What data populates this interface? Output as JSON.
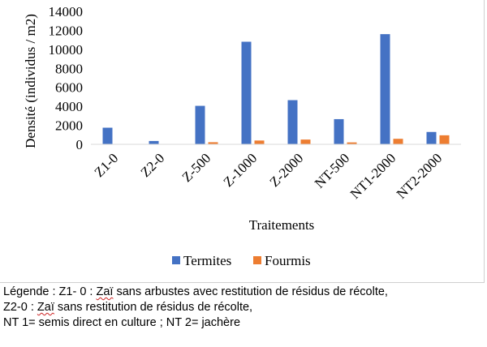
{
  "chart_data": {
    "type": "bar",
    "title": "",
    "xlabel": "Traitements",
    "ylabel": "Densité (individus / m2)",
    "ylim": [
      0,
      14000
    ],
    "yticks": [
      0,
      2000,
      4000,
      6000,
      8000,
      10000,
      12000,
      14000
    ],
    "ytick_labels": [
      "0",
      "2000",
      "4000",
      "6000",
      "8000",
      "10000",
      "12000",
      "14000"
    ],
    "grid": false,
    "legend_position": "bottom",
    "categories": [
      "Z1-0",
      "Z2-0",
      "Z-500",
      "Z-1000",
      "Z-2000",
      "NT-500",
      "NT1-2000",
      "NT2-2000"
    ],
    "series": [
      {
        "name": "Termites",
        "color": "#4472C4",
        "values": [
          1750,
          350,
          4050,
          10800,
          4650,
          2650,
          11600,
          1300
        ]
      },
      {
        "name": "Fourmis",
        "color": "#ED7D31",
        "values": [
          0,
          0,
          220,
          400,
          500,
          200,
          580,
          950
        ]
      }
    ]
  },
  "caption": {
    "line1_prefix": "Légende : Z1- 0 : ",
    "line1_word": "Zaï",
    "line1_suffix": " sans arbustes avec restitution de résidus de récolte,",
    "line2_prefix": "Z2-0 : ",
    "line2_word": "Zaï",
    "line2_suffix": " sans restitution de résidus de récolte,",
    "line3": "NT 1= semis direct en culture ; NT 2= jachère"
  }
}
